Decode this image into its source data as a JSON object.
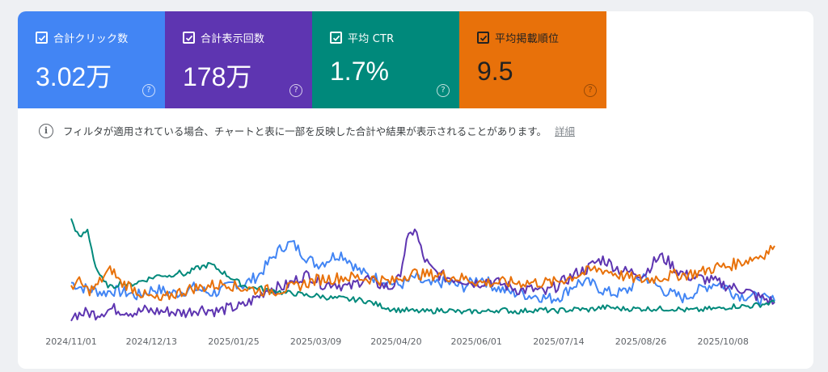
{
  "metrics": [
    {
      "label": "合計クリック数",
      "value": "3.02万",
      "color": "#4285f4",
      "checked": true
    },
    {
      "label": "合計表示回数",
      "value": "178万",
      "color": "#5e35b1",
      "checked": true
    },
    {
      "label": "平均 CTR",
      "value": "1.7%",
      "color": "#00897b",
      "checked": true
    },
    {
      "label": "平均掲載順位",
      "value": "9.5",
      "color": "#e8710a",
      "checked": true
    }
  ],
  "notice": {
    "icon": "info-icon",
    "text": "フィルタが適用されている場合、チャートと表に一部を反映した合計や結果が表示されることがあります。",
    "link": "詳細"
  },
  "chart_data": {
    "type": "line",
    "x_start": "2024/11/01",
    "x_end": "2025/11/04",
    "x_tick_labels": [
      "2024/11/01",
      "2024/12/13",
      "2025/01/25",
      "2025/03/09",
      "2025/04/20",
      "2025/06/01",
      "2025/07/14",
      "2025/08/26",
      "2025/10/08"
    ],
    "grid": false,
    "normalized_scale": [
      0,
      100
    ],
    "series": [
      {
        "name": "合計クリック数",
        "color": "#4285f4",
        "values": [
          30,
          27,
          25,
          24,
          22,
          24,
          23,
          22,
          20,
          22,
          25,
          24,
          22,
          22,
          24,
          26,
          24,
          22,
          23,
          26,
          30,
          28,
          32,
          36,
          44,
          52,
          58,
          60,
          54,
          48,
          44,
          46,
          50,
          52,
          47,
          40,
          36,
          34,
          32,
          30,
          28,
          30,
          34,
          30,
          28,
          30,
          30,
          28,
          27,
          30,
          34,
          30,
          26,
          24,
          22,
          22,
          20,
          20,
          18,
          18,
          20,
          26,
          30,
          30,
          28,
          24,
          22,
          22,
          24,
          30,
          36,
          30,
          26,
          22,
          20,
          18,
          22,
          25,
          28,
          30,
          27,
          22,
          20,
          20,
          18,
          17,
          16
        ]
      },
      {
        "name": "合計表示回数",
        "color": "#5e35b1",
        "values": [
          5,
          6,
          7,
          6,
          8,
          10,
          9,
          8,
          7,
          9,
          8,
          8,
          8,
          7,
          7,
          9,
          10,
          9,
          8,
          10,
          11,
          12,
          16,
          20,
          25,
          26,
          27,
          30,
          34,
          36,
          32,
          28,
          30,
          28,
          26,
          30,
          34,
          30,
          28,
          26,
          32,
          60,
          72,
          50,
          40,
          36,
          34,
          33,
          32,
          30,
          30,
          32,
          30,
          28,
          26,
          24,
          25,
          24,
          22,
          26,
          30,
          34,
          38,
          40,
          45,
          48,
          44,
          40,
          38,
          38,
          36,
          44,
          50,
          46,
          40,
          36,
          34,
          33,
          32,
          30,
          28,
          26,
          25,
          22,
          19,
          17,
          15
        ]
      },
      {
        "name": "平均 CTR",
        "color": "#00897b",
        "values": [
          78,
          64,
          70,
          42,
          30,
          26,
          30,
          28,
          30,
          32,
          34,
          36,
          35,
          38,
          36,
          40,
          42,
          44,
          40,
          36,
          32,
          28,
          26,
          26,
          24,
          24,
          22,
          22,
          21,
          20,
          20,
          19,
          18,
          18,
          17,
          17,
          16,
          14,
          12,
          10,
          9,
          9,
          8,
          8,
          8,
          9,
          9,
          8,
          7,
          8,
          8,
          8,
          9,
          9,
          8,
          8,
          9,
          9,
          9,
          8,
          9,
          9,
          10,
          9,
          10,
          11,
          11,
          10,
          10,
          10,
          10,
          10,
          10,
          10,
          10,
          9,
          9,
          9,
          10,
          10,
          11,
          12,
          12,
          12,
          13,
          14,
          15
        ]
      },
      {
        "name": "平均掲載順位",
        "color": "#e8710a",
        "values": [
          28,
          30,
          24,
          26,
          35,
          40,
          30,
          28,
          24,
          20,
          18,
          16,
          20,
          22,
          24,
          26,
          26,
          28,
          28,
          30,
          27,
          26,
          25,
          24,
          24,
          24,
          25,
          26,
          28,
          30,
          32,
          33,
          33,
          34,
          34,
          34,
          33,
          33,
          32,
          30,
          33,
          36,
          37,
          36,
          36,
          36,
          35,
          34,
          33,
          32,
          30,
          30,
          30,
          30,
          30,
          30,
          30,
          30,
          30,
          30,
          32,
          34,
          36,
          38,
          40,
          40,
          38,
          36,
          34,
          33,
          32,
          33,
          34,
          35,
          36,
          36,
          37,
          38,
          40,
          42,
          42,
          44,
          46,
          48,
          50,
          53,
          58
        ]
      }
    ]
  }
}
